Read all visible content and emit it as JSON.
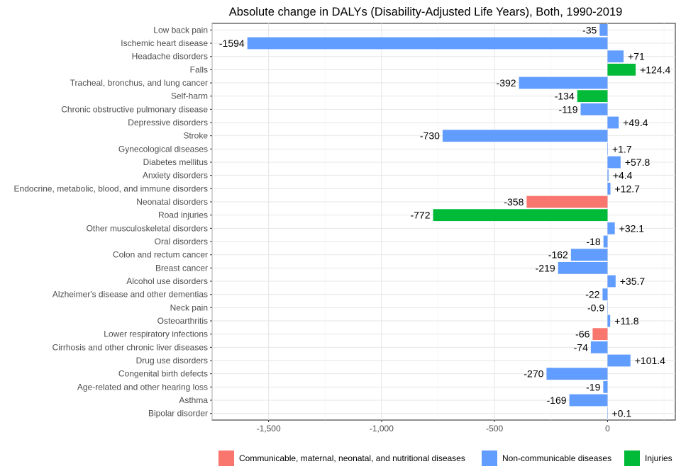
{
  "chart_data": {
    "type": "bar",
    "orientation": "horizontal",
    "title": "Absolute change in DALYs (Disability-Adjusted Life Years), Both, 1990-2019",
    "xlabel": "",
    "ylabel": "",
    "xlim": [
      -1750,
      300
    ],
    "x_ticks": [
      -1500,
      -1000,
      -500,
      0
    ],
    "x_tick_labels": [
      "-1,500",
      "-1,000",
      "-500",
      "0"
    ],
    "grid": true,
    "legend_position": "bottom",
    "groups": [
      {
        "name": "Communicable, maternal, neonatal, and nutritional diseases",
        "color": "#F8766D"
      },
      {
        "name": "Non-communicable diseases",
        "color": "#619CFF"
      },
      {
        "name": "Injuries",
        "color": "#00BA38"
      }
    ],
    "categories": [
      "Low back pain",
      "Ischemic heart disease",
      "Headache disorders",
      "Falls",
      "Tracheal, bronchus, and lung cancer",
      "Self-harm",
      "Chronic obstructive pulmonary disease",
      "Depressive disorders",
      "Stroke",
      "Gynecological diseases",
      "Diabetes mellitus",
      "Anxiety disorders",
      "Endocrine, metabolic, blood, and immune disorders",
      "Neonatal disorders",
      "Road injuries",
      "Other musculoskeletal disorders",
      "Oral disorders",
      "Colon and rectum cancer",
      "Breast cancer",
      "Alcohol use disorders",
      "Alzheimer's disease and other dementias",
      "Neck pain",
      "Osteoarthritis",
      "Lower respiratory infections",
      "Cirrhosis and other chronic liver diseases",
      "Drug use disorders",
      "Congenital birth defects",
      "Age-related and other hearing loss",
      "Asthma",
      "Bipolar disorder"
    ],
    "values": [
      -35,
      -1594,
      71,
      124.4,
      -392,
      -134,
      -119,
      49.4,
      -730,
      1.7,
      57.8,
      4.4,
      12.7,
      -358,
      -772,
      32.1,
      -18,
      -162,
      -219,
      35.7,
      -22,
      -0.9,
      11.8,
      -66,
      -74,
      101.4,
      -270,
      -19,
      -169,
      0.1
    ],
    "labels": [
      "-35",
      "-1594",
      "+71",
      "+124.4",
      "-392",
      "-134",
      "-119",
      "+49.4",
      "-730",
      "+1.7",
      "+57.8",
      "+4.4",
      "+12.7",
      "-358",
      "-772",
      "+32.1",
      "-18",
      "-162",
      "-219",
      "+35.7",
      "-22",
      "-0.9",
      "+11.8",
      "-66",
      "-74",
      "+101.4",
      "-270",
      "-19",
      "-169",
      "+0.1"
    ],
    "group_index": [
      1,
      1,
      1,
      2,
      1,
      2,
      1,
      1,
      1,
      1,
      1,
      1,
      1,
      0,
      2,
      1,
      1,
      1,
      1,
      1,
      1,
      1,
      1,
      0,
      1,
      1,
      1,
      1,
      1,
      1
    ]
  }
}
